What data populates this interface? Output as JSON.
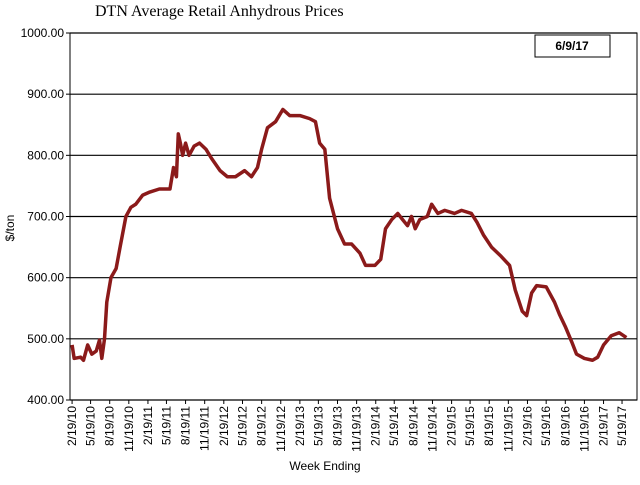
{
  "chart_data": {
    "type": "line",
    "title": "DTN Average Retail Anhydrous Prices",
    "annotation": "6/9/17",
    "x_label": "Week Ending",
    "y_label": "$/ton",
    "grid": true,
    "xlim": [
      "2/9/10",
      "7/30/17"
    ],
    "xticks": [
      "2/19/10",
      "5/19/10",
      "8/19/10",
      "11/19/10",
      "2/19/11",
      "5/19/11",
      "8/19/11",
      "11/19/11",
      "2/19/12",
      "5/19/12",
      "8/19/12",
      "11/19/12",
      "2/19/13",
      "5/19/13",
      "8/19/13",
      "11/19/13",
      "2/19/14",
      "5/19/14",
      "8/19/14",
      "11/19/14",
      "2/19/15",
      "5/19/15",
      "8/19/15",
      "11/19/15",
      "2/19/16",
      "5/19/16",
      "8/19/16",
      "11/19/16",
      "2/19/17",
      "5/19/17"
    ],
    "ylim": [
      400,
      1000
    ],
    "yticks": [
      {
        "value": 400,
        "label": "400.00"
      },
      {
        "value": 500,
        "label": "500.00"
      },
      {
        "value": 600,
        "label": "600.00"
      },
      {
        "value": 700,
        "label": "700.00"
      },
      {
        "value": 800,
        "label": "800.00"
      },
      {
        "value": 900,
        "label": "900.00"
      },
      {
        "value": 1000,
        "label": "1000.00"
      }
    ],
    "x": [
      "2/19/10",
      "3/1/10",
      "4/1/10",
      "4/15/10",
      "5/5/10",
      "5/25/10",
      "6/15/10",
      "7/1/10",
      "7/12/10",
      "7/25/10",
      "8/5/10",
      "8/25/10",
      "9/19/10",
      "10/8/10",
      "11/5/10",
      "11/29/10",
      "12/22/10",
      "1/25/11",
      "2/28/11",
      "4/15/11",
      "6/5/11",
      "6/22/11",
      "7/6/11",
      "7/15/11",
      "7/25/11",
      "8/5/11",
      "8/19/11",
      "9/5/11",
      "9/29/11",
      "10/25/11",
      "11/25/11",
      "12/22/11",
      "2/1/12",
      "3/7/12",
      "4/15/12",
      "5/29/12",
      "7/1/12",
      "7/30/12",
      "8/19/12",
      "9/16/12",
      "10/25/12",
      "11/29/12",
      "1/1/13",
      "2/19/13",
      "4/7/13",
      "5/5/13",
      "5/25/13",
      "6/19/13",
      "7/12/13",
      "8/19/13",
      "9/22/13",
      "10/26/13",
      "12/5/13",
      "1/1/14",
      "2/15/14",
      "3/15/14",
      "4/7/14",
      "5/7/14",
      "6/5/14",
      "6/28/14",
      "7/22/14",
      "8/10/14",
      "8/28/14",
      "9/19/14",
      "10/25/14",
      "11/15/14",
      "12/15/14",
      "1/17/15",
      "3/5/15",
      "4/8/15",
      "5/25/15",
      "6/22/15",
      "7/22/15",
      "8/30/15",
      "10/15/15",
      "11/25/15",
      "12/22/15",
      "1/25/16",
      "2/15/16",
      "3/10/16",
      "4/3/16",
      "5/19/16",
      "6/28/16",
      "7/22/16",
      "8/19/16",
      "9/19/16",
      "10/12/16",
      "11/19/16",
      "12/28/16",
      "1/22/17",
      "2/19/17",
      "3/28/17",
      "5/5/17",
      "6/9/17"
    ],
    "series": [
      {
        "color": "#8b1a1a",
        "values": [
          490,
          468,
          470,
          465,
          490,
          475,
          480,
          498,
          468,
          500,
          560,
          600,
          615,
          650,
          700,
          715,
          720,
          735,
          740,
          745,
          745,
          780,
          765,
          835,
          820,
          800,
          820,
          800,
          815,
          820,
          810,
          795,
          775,
          765,
          765,
          775,
          765,
          780,
          810,
          845,
          855,
          875,
          865,
          865,
          860,
          855,
          820,
          810,
          730,
          680,
          655,
          655,
          640,
          620,
          620,
          630,
          680,
          695,
          705,
          695,
          685,
          700,
          680,
          695,
          700,
          720,
          705,
          710,
          705,
          710,
          705,
          690,
          670,
          650,
          635,
          620,
          580,
          545,
          538,
          575,
          587,
          585,
          560,
          540,
          520,
          495,
          475,
          468,
          465,
          470,
          490,
          505,
          510,
          502
        ]
      }
    ]
  }
}
